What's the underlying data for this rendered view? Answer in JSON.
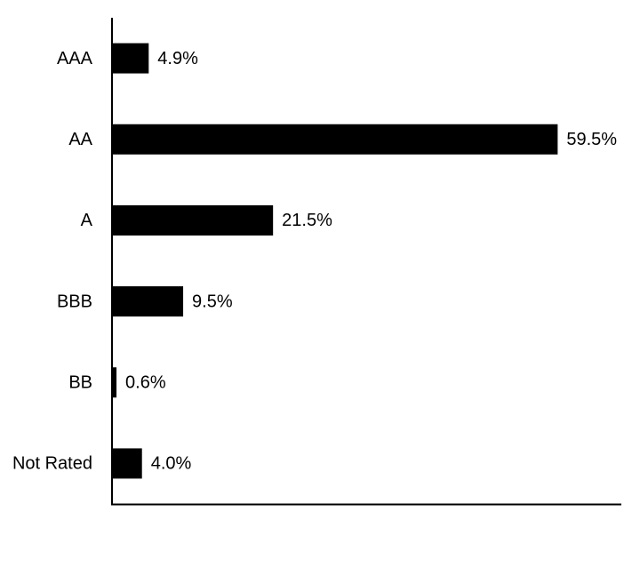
{
  "chart_data": {
    "type": "bar",
    "orientation": "horizontal",
    "categories": [
      "AAA",
      "AA",
      "A",
      "BBB",
      "BB",
      "Not Rated"
    ],
    "values": [
      4.9,
      59.5,
      21.5,
      9.5,
      0.6,
      4.0
    ],
    "value_labels": [
      "4.9%",
      "59.5%",
      "21.5%",
      "9.5%",
      "0.6%",
      "4.0%"
    ],
    "color": "#000000",
    "xlim": [
      0,
      68
    ]
  }
}
